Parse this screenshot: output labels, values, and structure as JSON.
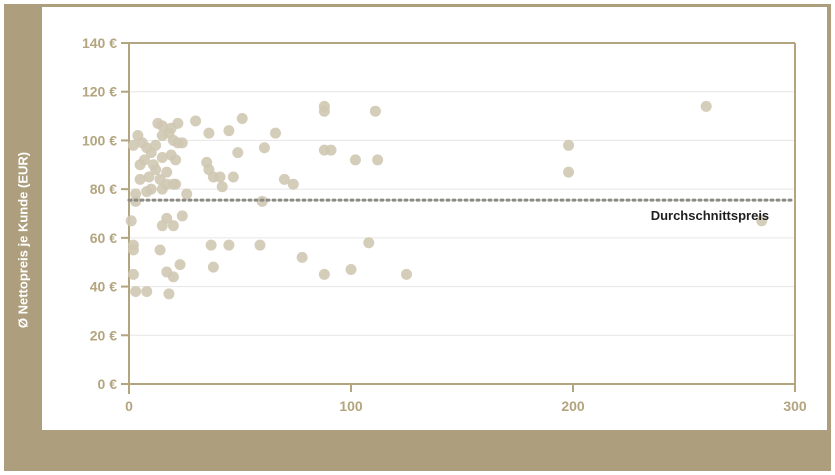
{
  "chart_data": {
    "type": "scatter",
    "ylabel": "Ø Nettopreis je Kunde (EUR)",
    "xlabel": "",
    "xlim": [
      0,
      300
    ],
    "ylim": [
      0,
      140
    ],
    "x_ticks": [
      "0",
      "100",
      "200",
      "300"
    ],
    "y_ticks": [
      "0 €",
      "20 €",
      "40 €",
      "60 €",
      "80 €",
      "100 €",
      "120 €",
      "140 €"
    ],
    "grid": "horizontal",
    "average": {
      "label": "Durchschnittspreis",
      "value": 75.5
    },
    "colors": {
      "frame": "#ad9f7d",
      "axis": "#b3a57f",
      "point": "#cfc8b2",
      "average_line": "#8e8a84"
    },
    "points": [
      [
        1,
        67
      ],
      [
        2,
        98
      ],
      [
        2,
        57
      ],
      [
        2,
        55
      ],
      [
        2,
        45
      ],
      [
        3,
        38
      ],
      [
        3,
        75
      ],
      [
        3,
        78
      ],
      [
        4,
        102
      ],
      [
        5,
        84
      ],
      [
        5,
        90
      ],
      [
        6,
        99
      ],
      [
        7,
        92
      ],
      [
        8,
        79
      ],
      [
        8,
        97
      ],
      [
        8,
        38
      ],
      [
        9,
        85
      ],
      [
        10,
        95
      ],
      [
        10,
        80
      ],
      [
        11,
        90
      ],
      [
        12,
        88
      ],
      [
        12,
        98
      ],
      [
        13,
        107
      ],
      [
        14,
        55
      ],
      [
        14,
        84
      ],
      [
        15,
        65
      ],
      [
        15,
        93
      ],
      [
        15,
        80
      ],
      [
        15,
        106
      ],
      [
        15,
        102
      ],
      [
        17,
        46
      ],
      [
        17,
        87
      ],
      [
        17,
        82
      ],
      [
        17,
        68
      ],
      [
        18,
        103
      ],
      [
        18,
        37
      ],
      [
        19,
        94
      ],
      [
        19,
        105
      ],
      [
        20,
        100
      ],
      [
        20,
        82
      ],
      [
        20,
        65
      ],
      [
        20,
        44
      ],
      [
        21,
        92
      ],
      [
        21,
        82
      ],
      [
        22,
        107
      ],
      [
        22,
        99
      ],
      [
        23,
        49
      ],
      [
        24,
        69
      ],
      [
        24,
        99
      ],
      [
        26,
        78
      ],
      [
        30,
        108
      ],
      [
        35,
        91
      ],
      [
        36,
        103
      ],
      [
        36,
        88
      ],
      [
        37,
        57
      ],
      [
        38,
        85
      ],
      [
        38,
        48
      ],
      [
        41,
        85
      ],
      [
        42,
        81
      ],
      [
        45,
        104
      ],
      [
        45,
        57
      ],
      [
        47,
        85
      ],
      [
        49,
        95
      ],
      [
        51,
        109
      ],
      [
        59,
        57
      ],
      [
        60,
        75
      ],
      [
        61,
        97
      ],
      [
        66,
        103
      ],
      [
        70,
        84
      ],
      [
        74,
        82
      ],
      [
        78,
        52
      ],
      [
        88,
        45
      ],
      [
        88,
        112
      ],
      [
        88,
        114
      ],
      [
        88,
        96
      ],
      [
        91,
        96
      ],
      [
        100,
        47
      ],
      [
        102,
        92
      ],
      [
        108,
        58
      ],
      [
        111,
        112
      ],
      [
        112,
        92
      ],
      [
        125,
        45
      ],
      [
        198,
        98
      ],
      [
        198,
        87
      ],
      [
        260,
        114
      ],
      [
        285,
        67
      ]
    ]
  }
}
